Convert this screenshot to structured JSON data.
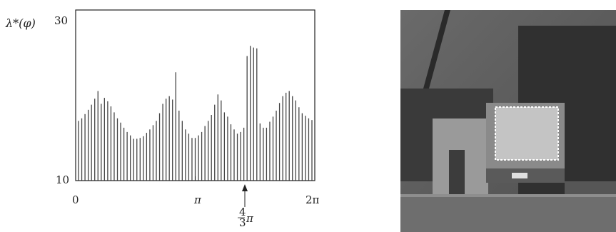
{
  "chart_data": {
    "type": "bar",
    "ylabel": "λ*(φ)",
    "xlabel": "",
    "title": "",
    "ylim": [
      10,
      30
    ],
    "xlim": [
      0,
      6.2832
    ],
    "yticks": [
      10,
      30
    ],
    "ytick_labels": [
      "10",
      "30"
    ],
    "xticks": [
      0,
      3.1416,
      6.2832
    ],
    "xtick_labels": [
      "0",
      "π",
      "2π"
    ],
    "annotation": {
      "x": 4.18879,
      "numerator": "4",
      "denominator": "3",
      "symbol": "π"
    },
    "values": [
      17.0,
      17.3,
      17.8,
      18.3,
      18.9,
      19.6,
      20.5,
      19.0,
      19.7,
      19.3,
      18.7,
      18.0,
      17.3,
      16.8,
      16.2,
      15.7,
      15.3,
      14.9,
      14.9,
      15.0,
      15.2,
      15.6,
      16.0,
      16.5,
      17.0,
      17.9,
      19.0,
      19.6,
      19.9,
      19.5,
      22.7,
      18.2,
      17.0,
      16.0,
      15.5,
      15.0,
      15.0,
      15.3,
      15.7,
      16.4,
      17.0,
      17.7,
      18.9,
      20.1,
      19.4,
      18.0,
      17.5,
      16.6,
      16.0,
      15.5,
      15.7,
      16.2,
      24.6,
      25.8,
      25.6,
      25.5,
      16.7,
      16.2,
      16.2,
      16.9,
      17.5,
      18.2,
      19.1,
      19.9,
      20.3,
      20.5,
      19.9,
      19.4,
      18.6,
      17.9,
      17.6,
      17.3,
      17.1
    ]
  },
  "photo": {
    "description": "grayscale photograph of a scene with a monitor-like box outlined by dashed white border"
  },
  "colors": {
    "bar": "#444444",
    "axis": "#222222",
    "photo_dark": "#3a3a3a",
    "photo_mid": "#707070",
    "highlight": "#bfbfbf"
  }
}
